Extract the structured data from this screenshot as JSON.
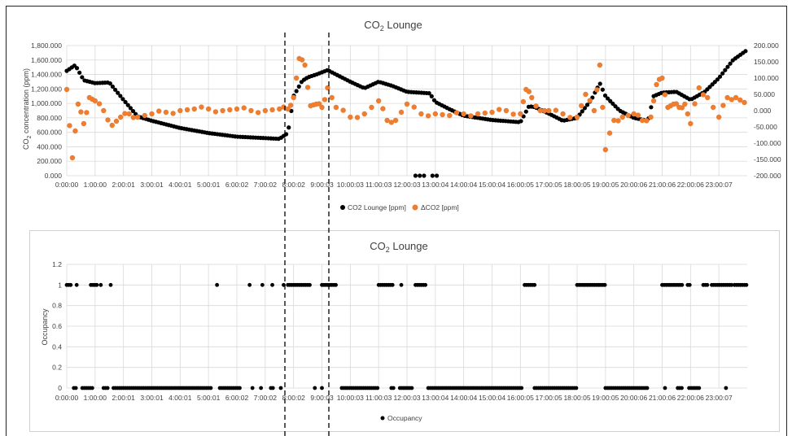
{
  "chart_data": [
    {
      "type": "scatter",
      "title": "CO2 Lounge",
      "title_base": "CO",
      "title_sub": "2",
      "title_rest": " Lounge",
      "ylabel": "CO2 concentration (ppm)",
      "ylabel_base": "CO",
      "ylabel_sub": "2",
      "ylabel_rest": " concentration (ppm)",
      "ylim": [
        0,
        1800
      ],
      "y2lim": [
        -200,
        200
      ],
      "xlim": [
        0,
        24
      ],
      "grid": true,
      "legend_position": "bottom",
      "y_ticks": [
        "0.000",
        "200.000",
        "400.000",
        "600.000",
        "800.000",
        "1,000.000",
        "1,200.000",
        "1,400.000",
        "1,600.000",
        "1,800.000"
      ],
      "y2_ticks": [
        "-200.000",
        "-150.000",
        "-100.000",
        "-50.000",
        "0.000",
        "50.000",
        "100.000",
        "150.000",
        "200.000"
      ],
      "x_ticks": [
        "0:00:00",
        "1:00:00",
        "2:00:01",
        "3:00:01",
        "4:00:01",
        "5:00:01",
        "6:00:02",
        "7:00:02",
        "8:00:02",
        "9:00:03",
        "10:00:03",
        "11:00:03",
        "12:00:03",
        "13:00:04",
        "14:00:04",
        "15:00:04",
        "16:00:05",
        "17:00:05",
        "18:00:05",
        "19:00:05",
        "20:00:06",
        "21:00:06",
        "22:00:06",
        "23:00:07"
      ],
      "series": [
        {
          "name": "CO2 Lounge [ppm]",
          "axis": "left",
          "color": "#000000",
          "x": [
            0,
            0.3,
            0.6,
            1,
            1.5,
            2,
            2.5,
            3,
            4,
            5,
            6,
            7,
            7.5,
            7.8,
            8,
            8.3,
            8.5,
            8.8,
            9.2,
            9.6,
            10,
            10.5,
            11,
            11.5,
            12,
            12.4,
            12.8,
            13,
            13.5,
            14,
            15,
            16,
            16.3,
            16.5,
            17,
            17.5,
            18,
            18.5,
            18.8,
            19,
            19.5,
            20,
            20.5,
            20.7,
            21,
            21.5,
            22,
            22.5,
            23,
            23.5,
            24
          ],
          "y": [
            1450,
            1530,
            1320,
            1280,
            1290,
            1050,
            820,
            760,
            660,
            590,
            540,
            520,
            510,
            590,
            1100,
            1310,
            1360,
            1400,
            1460,
            1380,
            1300,
            1210,
            1300,
            1240,
            1160,
            1150,
            1140,
            1020,
            920,
            830,
            770,
            740,
            960,
            950,
            860,
            760,
            800,
            1050,
            1280,
            1100,
            900,
            800,
            760,
            1100,
            1150,
            1160,
            1050,
            1160,
            1350,
            1600,
            1740
          ]
        },
        {
          "name": "ΔCO2 [ppm]",
          "axis": "right",
          "color": "#ed7d31",
          "x": [
            0,
            0.2,
            0.4,
            0.6,
            0.8,
            1,
            1.3,
            1.6,
            1.9,
            2.2,
            2.5,
            3,
            3.5,
            4,
            4.5,
            5,
            5.5,
            6,
            6.5,
            7,
            7.5,
            7.8,
            8,
            8.2,
            8.4,
            8.6,
            8.8,
            9,
            9.2,
            9.5,
            10,
            10.5,
            11,
            11.3,
            11.6,
            12,
            12.5,
            13,
            13.5,
            14,
            14.5,
            15,
            15.5,
            16,
            16.2,
            16.4,
            16.7,
            17,
            17.5,
            18,
            18.3,
            18.6,
            18.8,
            19,
            19.3,
            19.6,
            20,
            20.3,
            20.6,
            20.8,
            21,
            21.2,
            21.4,
            21.6,
            21.8,
            22,
            22.3,
            22.6,
            23,
            23.3,
            23.6,
            23.9
          ],
          "y": [
            65,
            -145,
            20,
            -40,
            40,
            30,
            0,
            -45,
            -20,
            -10,
            -20,
            -10,
            -5,
            0,
            5,
            5,
            0,
            5,
            0,
            0,
            5,
            5,
            40,
            160,
            140,
            15,
            20,
            10,
            70,
            10,
            -20,
            -10,
            30,
            -30,
            -30,
            20,
            -10,
            -10,
            -15,
            -10,
            -10,
            -5,
            0,
            -10,
            65,
            40,
            0,
            0,
            -10,
            -20,
            50,
            0,
            140,
            -120,
            -30,
            -20,
            -10,
            -30,
            -20,
            80,
            100,
            10,
            20,
            10,
            20,
            -40,
            70,
            40,
            -20,
            40,
            40,
            25
          ]
        },
        {
          "name": "",
          "axis": "left",
          "color": "#000000",
          "x": [
            12.3,
            12.45,
            12.6,
            12.9,
            13.05
          ],
          "y": [
            0,
            0,
            0,
            0,
            0
          ]
        }
      ]
    },
    {
      "type": "scatter",
      "title": "CO2 Lounge",
      "title_base": "CO",
      "title_sub": "2",
      "title_rest": " Lounge",
      "ylabel": "Occupancy",
      "ylim": [
        0,
        1.2
      ],
      "xlim": [
        0,
        24
      ],
      "grid": true,
      "legend_position": "bottom",
      "y_ticks": [
        "0",
        "0.2",
        "0.4",
        "0.6",
        "0.8",
        "1",
        "1.2"
      ],
      "x_ticks": [
        "0:00:00",
        "1:00:00",
        "2:00:01",
        "3:00:01",
        "4:00:01",
        "5:00:01",
        "6:00:02",
        "7:00:02",
        "8:00:02",
        "9:00:03",
        "10:00:03",
        "11:00:03",
        "12:00:03",
        "13:00:04",
        "14:00:04",
        "15:00:04",
        "16:00:05",
        "17:00:05",
        "18:00:05",
        "19:00:05",
        "20:00:06",
        "21:00:06",
        "22:00:06",
        "23:00:07"
      ],
      "series": [
        {
          "name": "Occupancy",
          "color": "#000000",
          "ones_ranges": [
            [
              0,
              0.2
            ],
            [
              0.35,
              0.35
            ],
            [
              0.85,
              1.1
            ],
            [
              1.2,
              1.25
            ],
            [
              1.55,
              1.55
            ],
            [
              5.3,
              5.3
            ],
            [
              6.45,
              6.45
            ],
            [
              6.9,
              6.9
            ],
            [
              7.25,
              7.25
            ],
            [
              7.65,
              7.65
            ],
            [
              7.8,
              8.6
            ],
            [
              9.0,
              9.5
            ],
            [
              11.0,
              11.5
            ],
            [
              11.8,
              11.8
            ],
            [
              12.3,
              12.7
            ],
            [
              16.15,
              16.5
            ],
            [
              18.0,
              19.0
            ],
            [
              21.0,
              21.7
            ],
            [
              21.9,
              22.0
            ],
            [
              22.45,
              22.6
            ],
            [
              22.75,
              23.45
            ],
            [
              23.55,
              24
            ]
          ],
          "zeros_ranges": [
            [
              0.25,
              0.35
            ],
            [
              0.55,
              0.9
            ],
            [
              1.3,
              1.45
            ],
            [
              1.65,
              5.1
            ],
            [
              5.4,
              6.1
            ],
            [
              6.55,
              6.55
            ],
            [
              6.85,
              6.9
            ],
            [
              7.2,
              7.3
            ],
            [
              7.55,
              7.55
            ],
            [
              8.75,
              8.75
            ],
            [
              9.0,
              9.0
            ],
            [
              9.7,
              11.0
            ],
            [
              11.45,
              11.55
            ],
            [
              11.75,
              12.2
            ],
            [
              12.75,
              16.1
            ],
            [
              16.5,
              18.0
            ],
            [
              19.0,
              20.5
            ],
            [
              21.1,
              21.1
            ],
            [
              21.55,
              21.75
            ],
            [
              21.95,
              22.35
            ],
            [
              23.25,
              23.25
            ]
          ]
        }
      ]
    }
  ]
}
